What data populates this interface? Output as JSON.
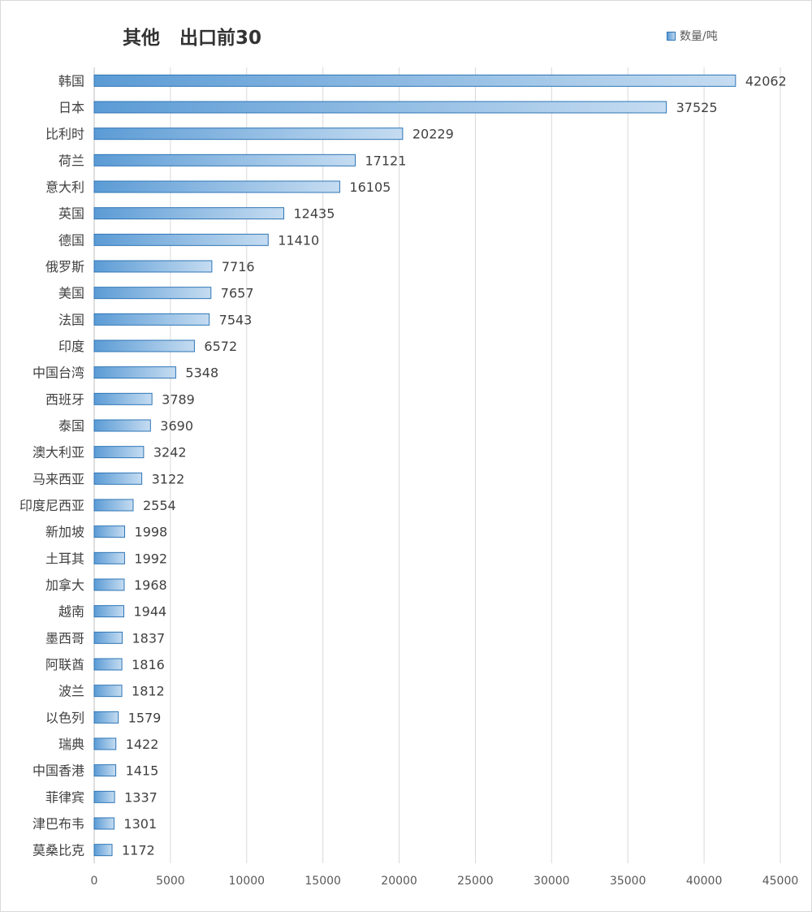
{
  "chart_data": {
    "type": "bar",
    "orientation": "horizontal",
    "title": "其他   出口前30",
    "legend": {
      "label": "数量/吨",
      "position": "top-right"
    },
    "categories": [
      "韩国",
      "日本",
      "比利时",
      "荷兰",
      "意大利",
      "英国",
      "德国",
      "俄罗斯",
      "美国",
      "法国",
      "印度",
      "中国台湾",
      "西班牙",
      "泰国",
      "澳大利亚",
      "马来西亚",
      "印度尼西亚",
      "新加坡",
      "土耳其",
      "加拿大",
      "越南",
      "墨西哥",
      "阿联酋",
      "波兰",
      "以色列",
      "瑞典",
      "中国香港",
      "菲律宾",
      "津巴布韦",
      "莫桑比克"
    ],
    "values": [
      42062,
      37525,
      20229,
      17121,
      16105,
      12435,
      11410,
      7716,
      7657,
      7543,
      6572,
      5348,
      3789,
      3690,
      3242,
      3122,
      2554,
      1998,
      1992,
      1968,
      1944,
      1837,
      1816,
      1812,
      1579,
      1422,
      1415,
      1337,
      1301,
      1172
    ],
    "xlim": [
      0,
      45000
    ],
    "xticks": [
      0,
      5000,
      10000,
      15000,
      20000,
      25000,
      30000,
      35000,
      40000,
      45000
    ],
    "grid": "vertical",
    "colors": {
      "bar_start": "#5b9bd5",
      "bar_end": "#c5dcf1",
      "bar_border": "#2e75b6",
      "grid": "#d9d9d9",
      "text": "#404040"
    }
  }
}
